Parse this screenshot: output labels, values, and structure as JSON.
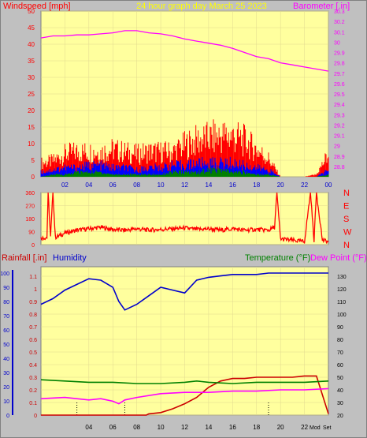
{
  "header": {
    "wind_label": "Windspeed [mph]",
    "title": "24 hour graph day   March 25 2023",
    "baro_label": "Barometer [.in]"
  },
  "lower_header": {
    "rain_label": "Rainfall [.in]",
    "humidity_label": "Humidity",
    "temp_label": "Temperature (°F)",
    "dew_label": "Dew Point (°F)"
  },
  "colors": {
    "panel_bg": "#ffff9e",
    "page_bg": "#c0c0c0",
    "barometer": "#ff00ff",
    "wind_gust": "#ff0000",
    "wind_avg": "#0000ff",
    "wind_low": "#008000",
    "wind_dir": "#ff0000",
    "humidity": "#0000cc",
    "rain": "#cc0000",
    "temperature": "#008000",
    "dew_point": "#ff00ff",
    "axis_wind": "#ff0000",
    "axis_baro": "#ff00ff"
  },
  "chart_data": [
    {
      "type": "line",
      "name": "wind-barometer",
      "x_ticks": [
        "02",
        "04",
        "06",
        "08",
        "10",
        "12",
        "14",
        "16",
        "18",
        "20",
        "22",
        "00"
      ],
      "xlim": [
        0,
        24
      ],
      "y_left": {
        "label": "Windspeed [mph]",
        "lim": [
          0,
          50
        ],
        "ticks": [
          0,
          5,
          10,
          15,
          20,
          25,
          30,
          35,
          40,
          45,
          50
        ]
      },
      "y_right": {
        "label": "Barometer [.in]",
        "lim": [
          28.7,
          30.3
        ],
        "ticks": [
          "28.8",
          "28.9",
          "29",
          "29.1",
          "29.2",
          "29.3",
          "29.4",
          "29.5",
          "29.6",
          "29.7",
          "29.8",
          "29.9",
          "30",
          "30.1",
          "30.2",
          "30.3"
        ]
      },
      "series": [
        {
          "axis": "right",
          "x": [
            0,
            1,
            2,
            3,
            4,
            5,
            6,
            7,
            8,
            9,
            10,
            11,
            12,
            13,
            14,
            15,
            16,
            17,
            18,
            19,
            20,
            21,
            22,
            23,
            24
          ],
          "y": [
            30.04,
            30.06,
            30.06,
            30.07,
            30.07,
            30.08,
            30.09,
            30.11,
            30.11,
            30.09,
            30.08,
            30.06,
            30.03,
            30.01,
            29.99,
            29.97,
            29.94,
            29.9,
            29.86,
            29.84,
            29.8,
            29.78,
            29.76,
            29.74,
            29.72
          ]
        },
        {
          "axis": "left",
          "x": [
            0,
            1,
            2,
            3,
            4,
            5,
            6,
            7,
            8,
            9,
            10,
            11,
            12,
            13,
            14,
            15,
            16,
            17,
            18,
            19,
            20,
            21,
            22,
            23,
            24
          ],
          "y": [
            6,
            7,
            10,
            11,
            11,
            11,
            12,
            11,
            10,
            11,
            11,
            11,
            14,
            16,
            17,
            18,
            18,
            16,
            12,
            8,
            0,
            0,
            0,
            1,
            10
          ]
        },
        {
          "axis": "left",
          "x": [
            0,
            1,
            2,
            3,
            4,
            5,
            6,
            7,
            8,
            9,
            10,
            11,
            12,
            13,
            14,
            15,
            16,
            17,
            18,
            19,
            20,
            21,
            22,
            23,
            24
          ],
          "y": [
            2,
            3,
            4,
            4,
            5,
            5,
            4,
            4,
            3,
            4,
            4,
            5,
            5,
            6,
            6,
            6,
            6,
            5,
            4,
            3,
            0,
            0,
            0,
            0,
            3
          ]
        },
        {
          "axis": "left",
          "x": [
            0,
            1,
            2,
            3,
            4,
            5,
            6,
            7,
            8,
            9,
            10,
            11,
            12,
            13,
            14,
            15,
            16,
            17,
            18,
            19,
            20,
            21,
            22,
            23,
            24
          ],
          "y": [
            0,
            1,
            1,
            2,
            2,
            2,
            1,
            1,
            1,
            1,
            1,
            2,
            2,
            2,
            3,
            3,
            2,
            2,
            1,
            1,
            0,
            0,
            0,
            0,
            1
          ]
        }
      ]
    },
    {
      "type": "line",
      "name": "wind-direction",
      "xlim": [
        0,
        24
      ],
      "y_left": {
        "lim": [
          0,
          360
        ],
        "ticks": [
          0,
          90,
          180,
          270,
          360
        ]
      },
      "y_right_labels": [
        "N",
        "W",
        "S",
        "E",
        "N"
      ],
      "series": [
        {
          "x": [
            0,
            0.5,
            0.6,
            0.8,
            1,
            1.2,
            1.5,
            2,
            2.5,
            3,
            4,
            5,
            6,
            7,
            8,
            9,
            10,
            11,
            12,
            13,
            14,
            15,
            16,
            17,
            18,
            19,
            19.5,
            19.7,
            20,
            21,
            22,
            22.5,
            22.8,
            23,
            23.5,
            24
          ],
          "y": [
            45,
            50,
            360,
            50,
            360,
            50,
            60,
            80,
            90,
            100,
            110,
            120,
            105,
            100,
            110,
            100,
            105,
            110,
            115,
            105,
            110,
            100,
            110,
            100,
            105,
            100,
            120,
            360,
            40,
            30,
            20,
            360,
            30,
            360,
            30,
            20
          ]
        }
      ]
    },
    {
      "type": "line",
      "name": "humidity-rain-temperature",
      "x_ticks": [
        "04",
        "06",
        "08",
        "10",
        "12",
        "14",
        "16",
        "18",
        "20",
        "22"
      ],
      "xlim": [
        0,
        24
      ],
      "y_left_outer": {
        "label": "Humidity",
        "lim": [
          0,
          100
        ],
        "ticks": [
          0,
          10,
          20,
          30,
          40,
          50,
          60,
          70,
          80,
          90,
          100
        ]
      },
      "y_left_inner": {
        "label": "Rainfall [.in]",
        "lim": [
          0,
          1.2
        ],
        "ticks": [
          "0",
          "0.1",
          "0.2",
          "0.3",
          "0.4",
          "0.5",
          "0.6",
          "0.7",
          "0.8",
          "0.9",
          "1",
          "1.1"
        ]
      },
      "y_right": {
        "label": "Temperature (°F)",
        "lim": [
          20,
          140
        ],
        "ticks": [
          20,
          30,
          40,
          50,
          60,
          70,
          80,
          90,
          100,
          110,
          120,
          130
        ]
      },
      "x_end_labels": [
        "Mod",
        "Set"
      ],
      "series": [
        {
          "axis": "outer",
          "x": [
            0,
            1,
            2,
            3,
            4,
            5,
            6,
            6.5,
            7,
            8,
            9,
            10,
            11,
            12,
            13,
            14,
            15,
            16,
            17,
            18,
            19,
            20,
            21,
            22,
            23,
            24
          ],
          "y": [
            78,
            82,
            88,
            92,
            96,
            95,
            90,
            80,
            74,
            78,
            84,
            90,
            88,
            86,
            95,
            97,
            98,
            99,
            99,
            99,
            100,
            100,
            100,
            100,
            100,
            100
          ]
        },
        {
          "axis": "inner",
          "x": [
            0,
            8,
            8.8,
            9,
            10,
            11,
            12,
            13,
            14,
            15,
            16,
            17,
            18,
            19,
            20,
            21,
            22,
            23,
            24
          ],
          "y": [
            0,
            0,
            0,
            0.01,
            0.02,
            0.05,
            0.09,
            0.14,
            0.22,
            0.27,
            0.29,
            0.29,
            0.3,
            0.3,
            0.3,
            0.3,
            0.31,
            0.31,
            0.01
          ]
        },
        {
          "axis": "right",
          "x": [
            0,
            2,
            4,
            6,
            8,
            10,
            12,
            13,
            14,
            16,
            18,
            20,
            22,
            24
          ],
          "y": [
            48,
            47,
            46,
            46,
            45,
            45,
            46,
            47,
            46,
            45,
            46,
            46,
            46,
            47
          ]
        },
        {
          "axis": "right",
          "x": [
            0,
            2,
            4,
            5,
            6,
            6.5,
            7,
            8,
            10,
            12,
            14,
            16,
            18,
            20,
            22,
            24
          ],
          "y": [
            33,
            34,
            32,
            33,
            31,
            29,
            32,
            34,
            37,
            38,
            38,
            39,
            39,
            40,
            40,
            41
          ]
        }
      ]
    }
  ]
}
